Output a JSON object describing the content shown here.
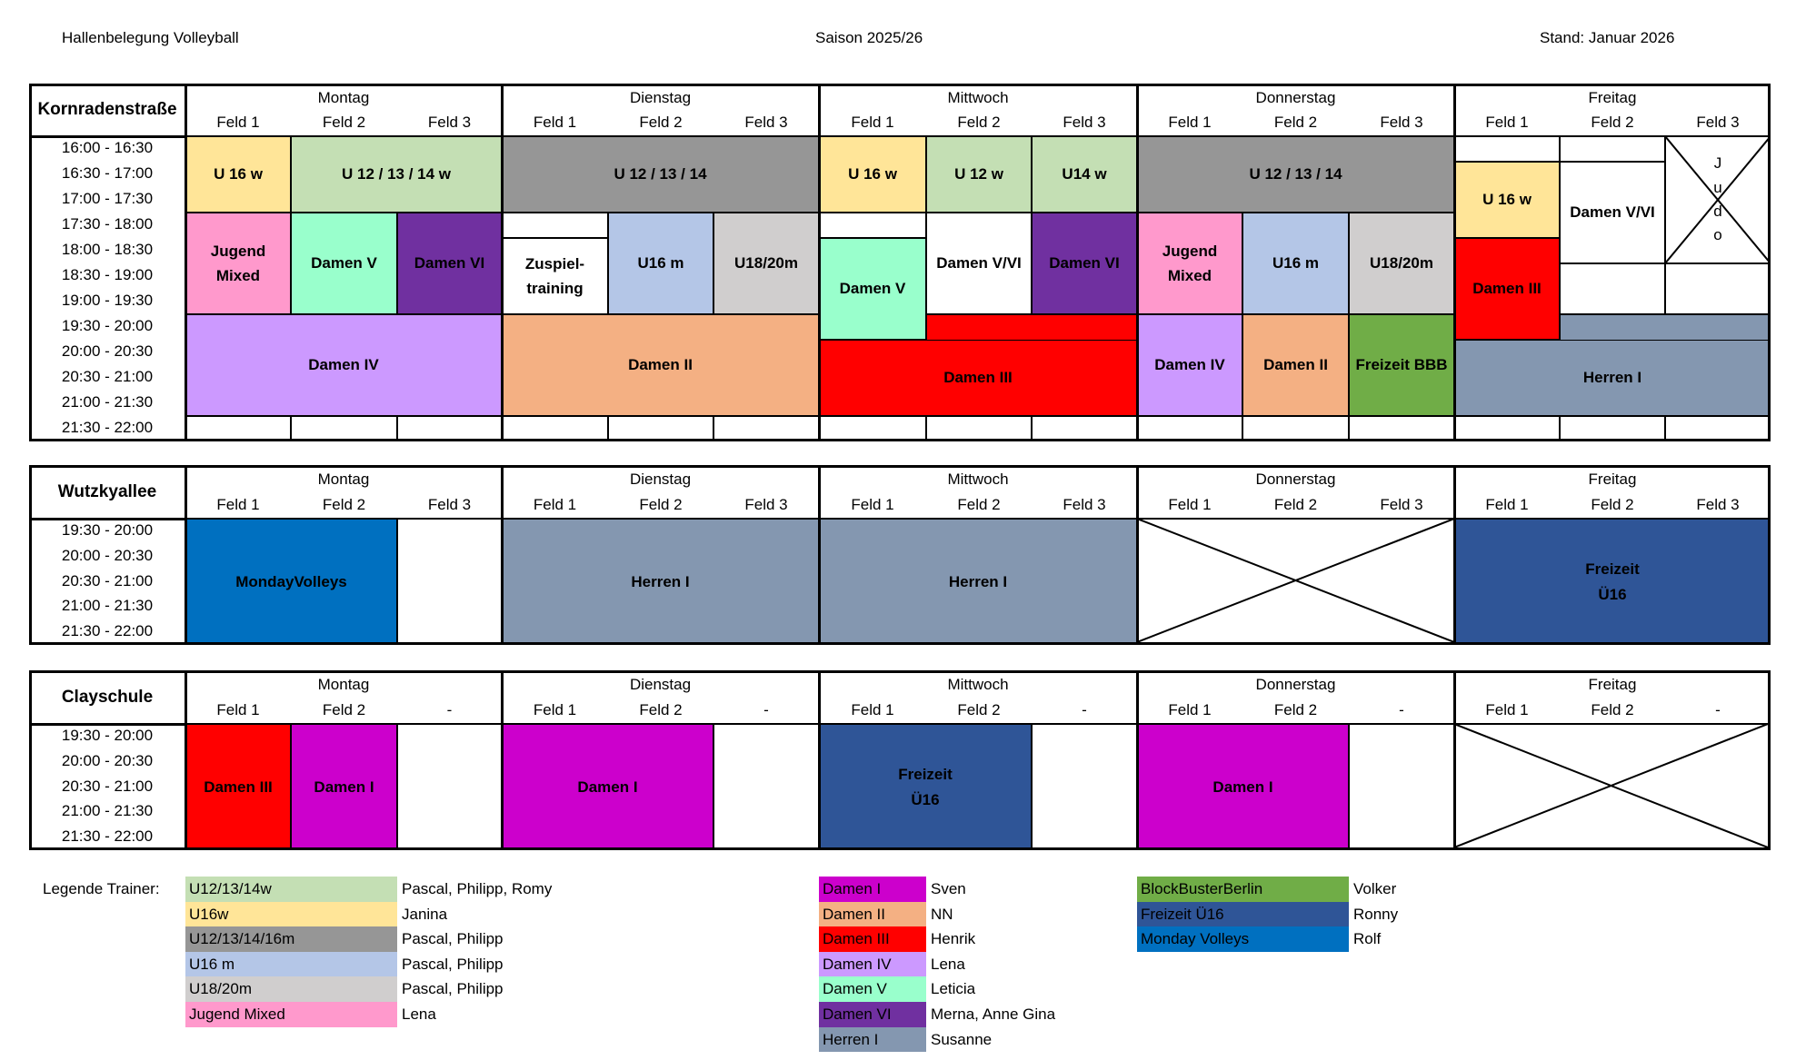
{
  "header": {
    "title": "Hallenbelegung Volleyball",
    "season": "Saison 2025/26",
    "stand": "Stand: Januar 2026"
  },
  "days": [
    "Montag",
    "Dienstag",
    "Mittwoch",
    "Donnerstag",
    "Freitag"
  ],
  "feld_labels": [
    "Feld 1",
    "Feld 2",
    "Feld 3"
  ],
  "colors": {
    "u12w": "#C4DFB4",
    "u16w": "#FFE598",
    "u12m": "#969696",
    "u16m": "#B4C6E7",
    "u18": "#D0CECE",
    "jugend": "#FF99CC",
    "damen1": "#CC00CC",
    "damen2": "#F4B083",
    "damen3": "#FF0000",
    "damen4": "#CC99FF",
    "damen5": "#99FFCC",
    "damen6": "#7030A0",
    "herren1": "#8497B0",
    "bbb": "#70AD47",
    "freizeit": "#2F5597",
    "monday": "#0070C0"
  },
  "kornraden": {
    "location": "Kornraden straße",
    "location_line1": "Kornraden",
    "location_line2": "straße",
    "times": [
      "16:00 - 16:30",
      "16:30 - 17:00",
      "17:00 - 17:30",
      "17:30 - 18:00",
      "18:00 - 18:30",
      "18:30 - 19:00",
      "19:00 - 19:30",
      "19:30 - 20:00",
      "20:00 - 20:30",
      "20:30 - 21:00",
      "21:00 - 21:30",
      "21:30 - 22:00"
    ],
    "blocks": {
      "mo_u16w": "U 16 w",
      "mo_u12w": "U 12 / 13 / 14 w",
      "mo_jugend_1": "Jugend",
      "mo_jugend_2": "Mixed",
      "mo_damen5": "Damen V",
      "mo_damen6": "Damen VI",
      "mo_damen4": "Damen IV",
      "di_u12": "U 12 / 13 / 14",
      "di_zuspiel_1": "Zuspiel-",
      "di_zuspiel_2": "training",
      "di_u16m": "U16 m",
      "di_u18": "U18/20m",
      "di_damen2": "Damen II",
      "mi_u16w": "U 16 w",
      "mi_u12w": "U 12 w",
      "mi_u14w": "U14 w",
      "mi_damen5": "Damen V",
      "mi_damen56": "Damen V/VI",
      "mi_damen6": "Damen VI",
      "mi_damen3": "Damen III",
      "do_u12": "U 12 / 13 / 14",
      "do_jugend_1": "Jugend",
      "do_jugend_2": "Mixed",
      "do_u16m": "U16 m",
      "do_u18": "U18/20m",
      "do_damen4": "Damen IV",
      "do_damen2": "Damen II",
      "do_bbb": "Freizeit BBB",
      "fr_u16w": "U 16 w",
      "fr_damen56": "Damen V/VI",
      "fr_judo": [
        "J",
        "u",
        "d",
        "o"
      ],
      "fr_damen3": "Damen III",
      "fr_herren1": "Herren I"
    }
  },
  "wutzkyallee": {
    "location": "Wutzkyallee",
    "times": [
      "19:30 - 20:00",
      "20:00 - 20:30",
      "20:30 - 21:00",
      "21:00 - 21:30",
      "21:30 - 22:00"
    ],
    "blocks": {
      "mo": "MondayVolleys",
      "di": "Herren I",
      "mi": "Herren I",
      "fr_1": "Freizeit",
      "fr_2": "Ü16"
    }
  },
  "clayschule": {
    "location": "Clayschule",
    "feld_labels": [
      "Feld 1",
      "Feld 2",
      "-"
    ],
    "times": [
      "19:30 - 20:00",
      "20:00 - 20:30",
      "20:30 - 21:00",
      "21:00 - 21:30",
      "21:30 - 22:00"
    ],
    "blocks": {
      "mo_damen3": "Damen III",
      "mo_damen1": "Damen I",
      "di": "Damen I",
      "mi_1": "Freizeit",
      "mi_2": "Ü16",
      "do": "Damen I"
    }
  },
  "legend": {
    "label": "Legende Trainer:",
    "col1": [
      {
        "team": "U12/13/14w",
        "trainer": "Pascal, Philipp, Romy"
      },
      {
        "team": "U16w",
        "trainer": "Janina"
      },
      {
        "team": "U12/13/14/16m",
        "trainer": "Pascal, Philipp"
      },
      {
        "team": "U16 m",
        "trainer": "Pascal, Philipp"
      },
      {
        "team": "U18/20m",
        "trainer": "Pascal, Philipp"
      },
      {
        "team": "Jugend Mixed",
        "trainer": "Lena"
      }
    ],
    "col2": [
      {
        "team": "Damen I",
        "trainer": "Sven"
      },
      {
        "team": "Damen II",
        "trainer": "NN"
      },
      {
        "team": "Damen III",
        "trainer": "Henrik"
      },
      {
        "team": "Damen IV",
        "trainer": "Lena"
      },
      {
        "team": "Damen V",
        "trainer": "Leticia"
      },
      {
        "team": "Damen VI",
        "trainer": "Merna, Anne Gina"
      },
      {
        "team": "Herren I",
        "trainer": "Susanne"
      }
    ],
    "col3": [
      {
        "team": "BlockBusterBerlin",
        "trainer": "Volker"
      },
      {
        "team": "Freizeit Ü16",
        "trainer": "Ronny"
      },
      {
        "team": "Monday Volleys",
        "trainer": "Rolf"
      }
    ]
  }
}
